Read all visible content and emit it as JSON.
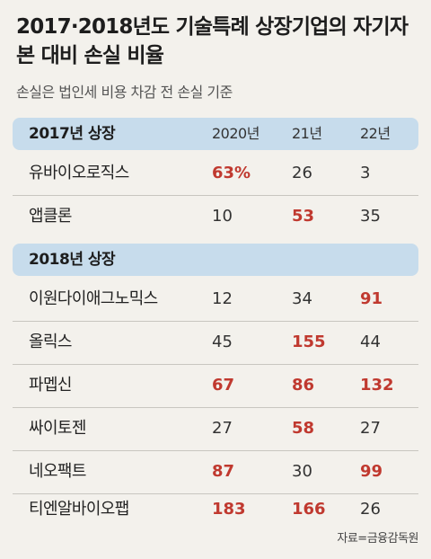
{
  "title": "2017·2018년도 기술특례 상장기업의 자기자본 대비 손실 비율",
  "subtitle": "손실은 법인세 비용 차감 전 손실 기준",
  "columns": [
    "2020년",
    "21년",
    "22년"
  ],
  "highlight_color": "#c0392f",
  "groups": [
    {
      "label": "2017년 상장",
      "rows": [
        {
          "name": "유바이오로직스",
          "values": [
            "63%",
            "26",
            "3"
          ],
          "highlight": [
            true,
            false,
            false
          ]
        },
        {
          "name": "앱클론",
          "values": [
            "10",
            "53",
            "35"
          ],
          "highlight": [
            false,
            true,
            false
          ]
        }
      ]
    },
    {
      "label": "2018년 상장",
      "rows": [
        {
          "name": "이원다이애그노믹스",
          "values": [
            "12",
            "34",
            "91"
          ],
          "highlight": [
            false,
            false,
            true
          ]
        },
        {
          "name": "올릭스",
          "values": [
            "45",
            "155",
            "44"
          ],
          "highlight": [
            false,
            true,
            false
          ]
        },
        {
          "name": "파멥신",
          "values": [
            "67",
            "86",
            "132"
          ],
          "highlight": [
            true,
            true,
            true
          ]
        },
        {
          "name": "싸이토젠",
          "values": [
            "27",
            "58",
            "27"
          ],
          "highlight": [
            false,
            true,
            false
          ]
        },
        {
          "name": "네오팩트",
          "values": [
            "87",
            "30",
            "99"
          ],
          "highlight": [
            true,
            false,
            true
          ]
        },
        {
          "name": "티엔알바이오팹",
          "values": [
            "183",
            "166",
            "26"
          ],
          "highlight": [
            true,
            true,
            false
          ]
        }
      ]
    }
  ],
  "source": "자료=금융감독원"
}
